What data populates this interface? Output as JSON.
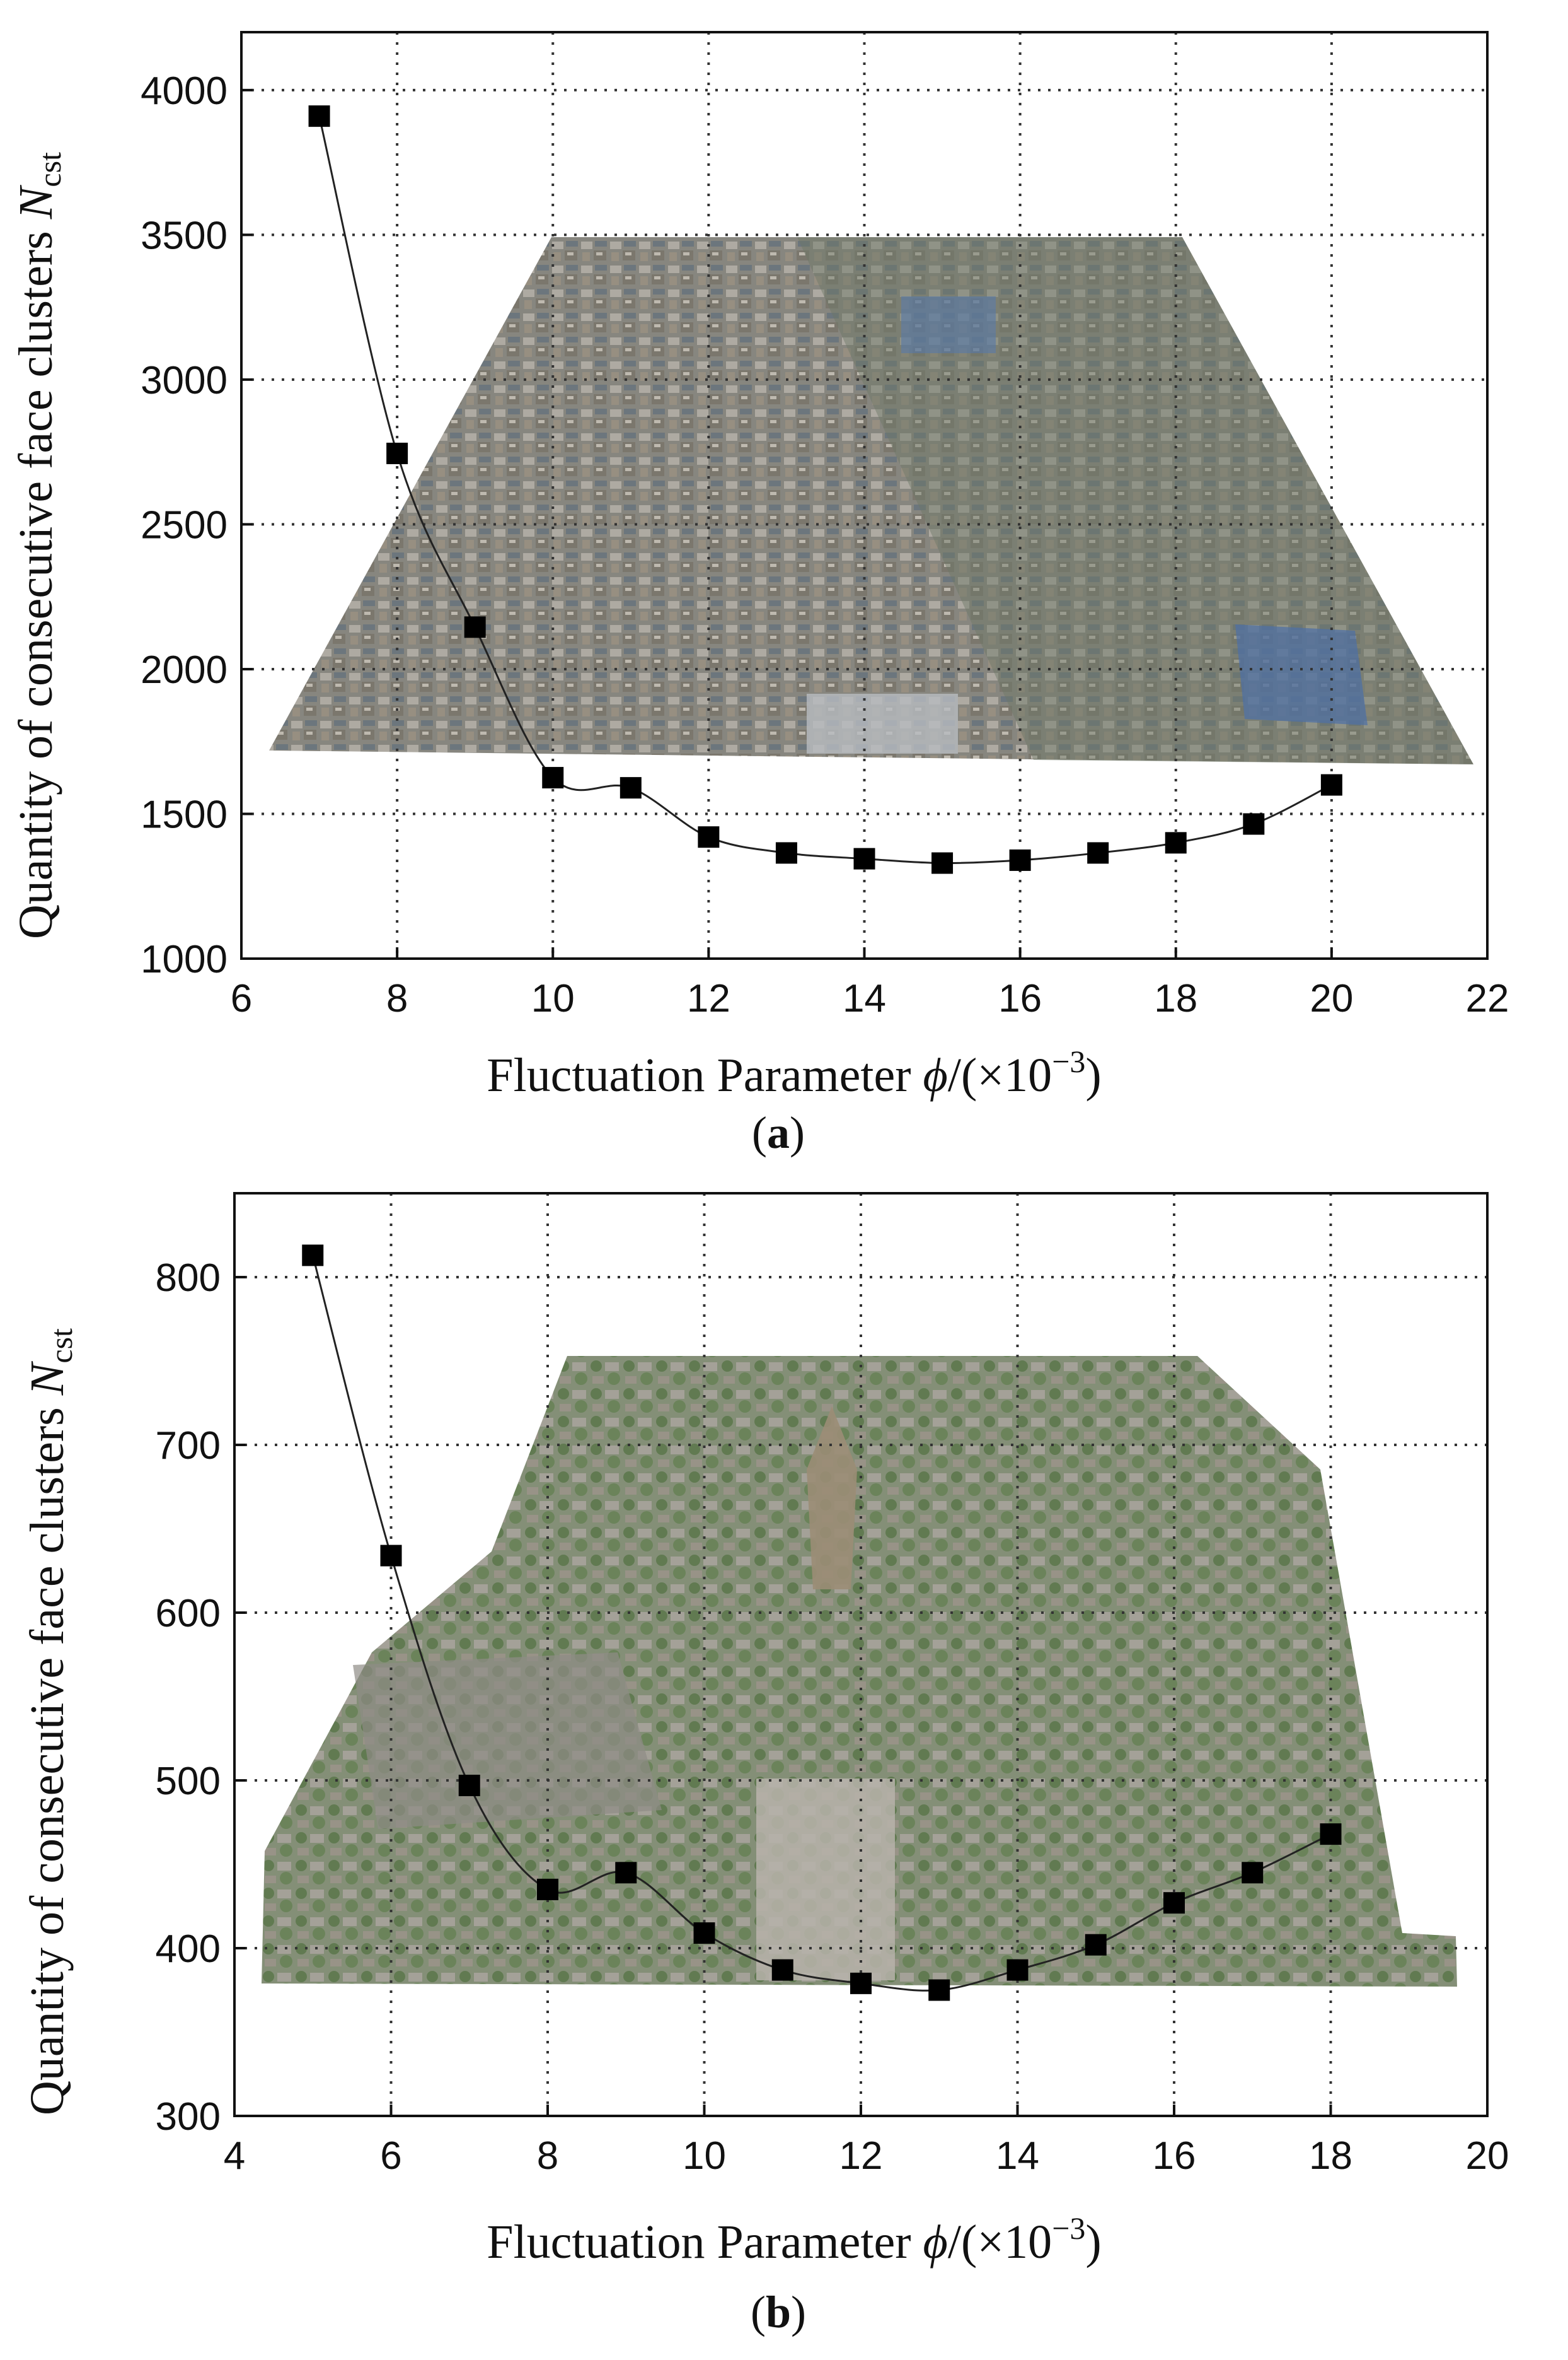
{
  "chart_data": [
    {
      "type": "line",
      "panel_label": "a",
      "xlabel_text": "Fluctuation Parameter",
      "xlabel_symbol": "ϕ",
      "xlabel_unit_open": "/(×10",
      "xlabel_unit_exp": "−3",
      "xlabel_unit_close": ")",
      "ylabel_text": "Quantity of consecutive face clusters",
      "ylabel_symbol": "N",
      "ylabel_subscript": "cst",
      "xlim": [
        6,
        22
      ],
      "ylim": [
        1000,
        4200
      ],
      "xticks": [
        6,
        8,
        10,
        12,
        14,
        16,
        18,
        20,
        22
      ],
      "yticks": [
        1000,
        1500,
        2000,
        2500,
        3000,
        3500,
        4000
      ],
      "grid": true,
      "background": "aerial photogrammetry model of an urban district",
      "series": [
        {
          "x": [
            7,
            8,
            9,
            10,
            11,
            12,
            13,
            14,
            15,
            16,
            17,
            18,
            19,
            20
          ],
          "y": [
            3910,
            2745,
            2145,
            1625,
            1590,
            1420,
            1365,
            1345,
            1330,
            1340,
            1365,
            1400,
            1465,
            1600
          ]
        }
      ]
    },
    {
      "type": "line",
      "panel_label": "b",
      "xlabel_text": "Fluctuation Parameter",
      "xlabel_symbol": "ϕ",
      "xlabel_unit_open": "/(×10",
      "xlabel_unit_exp": "−3",
      "xlabel_unit_close": ")",
      "ylabel_text": "Quantity of consecutive face clusters",
      "ylabel_symbol": "N",
      "ylabel_subscript": "cst",
      "xlim": [
        4,
        20
      ],
      "ylim": [
        300,
        850
      ],
      "xticks": [
        4,
        6,
        8,
        10,
        12,
        14,
        16,
        18,
        20
      ],
      "yticks": [
        300,
        400,
        500,
        600,
        700,
        800
      ],
      "grid": true,
      "background": "aerial photogrammetry model of a pagoda and temple complex",
      "series": [
        {
          "x": [
            5,
            6,
            7,
            8,
            9,
            10,
            11,
            12,
            13,
            14,
            15,
            16,
            17,
            18
          ],
          "y": [
            813,
            634,
            497,
            435,
            445,
            409,
            387,
            379,
            375,
            387,
            402,
            427,
            445,
            468
          ]
        }
      ]
    }
  ],
  "colors": {
    "marker": "#000000",
    "line": "#222222",
    "grid": "#333333",
    "photo_a_base": "#7c7a72",
    "photo_b_base": "#7f8a74"
  }
}
